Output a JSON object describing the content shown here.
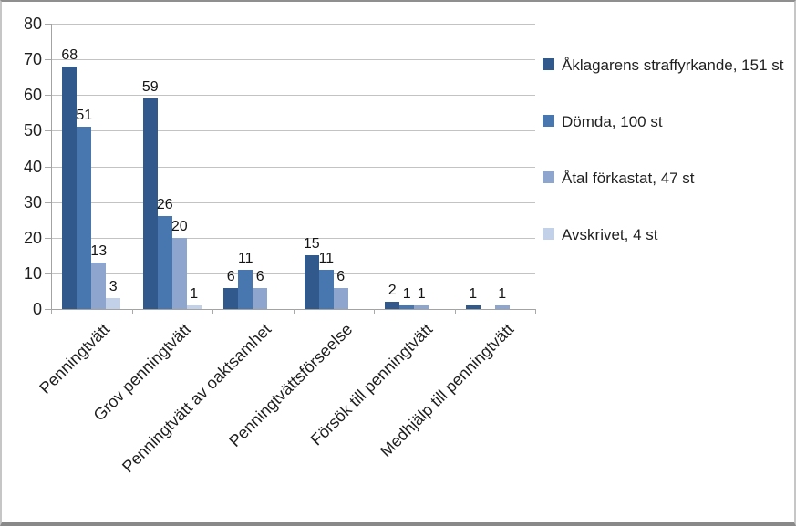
{
  "chart_data": {
    "type": "bar",
    "title": "",
    "xlabel": "",
    "ylabel": "",
    "categories": [
      "Penningtvätt",
      "Grov penningtvätt",
      "Penningtvätt av oaktsamhet",
      "Penningtvättsförseelse",
      "Försök till penningtvätt",
      "Medhjälp till penningtvätt"
    ],
    "series": [
      {
        "name": "Åklagarens straffyrkande, 151 st",
        "color": "#31598B",
        "values": [
          68,
          59,
          6,
          15,
          2,
          1
        ]
      },
      {
        "name": "Dömda, 100 st",
        "color": "#4876AE",
        "values": [
          51,
          26,
          11,
          11,
          1,
          0
        ]
      },
      {
        "name": "Åtal förkastat, 47 st",
        "color": "#8EA6CE",
        "values": [
          13,
          20,
          6,
          6,
          1,
          1
        ]
      },
      {
        "name": "Avskrivet, 4 st",
        "color": "#C3D1E8",
        "values": [
          3,
          1,
          0,
          0,
          0,
          0
        ]
      }
    ],
    "ylim": [
      0,
      80
    ],
    "yticks": [
      0,
      10,
      20,
      30,
      40,
      50,
      60,
      70,
      80
    ],
    "grid": true,
    "data_labels": true,
    "hide_zero_labels": true,
    "legend_position": "right",
    "colors": {
      "gridline": "#c3c3c3",
      "axis": "#a3a3a3",
      "text": "#1f1f1f"
    }
  }
}
